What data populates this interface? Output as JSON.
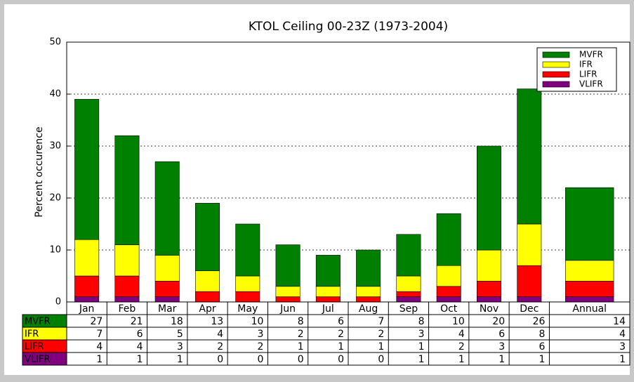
{
  "chart_data": {
    "type": "bar",
    "stacked": true,
    "title": "KTOL Ceiling 00-23Z (1973-2004)",
    "y_label": "Percent occurence",
    "categories": [
      "Jan",
      "Feb",
      "Mar",
      "Apr",
      "May",
      "Jun",
      "Jul",
      "Aug",
      "Sep",
      "Oct",
      "Nov",
      "Dec",
      "Annual"
    ],
    "series": [
      {
        "name": "MVFR",
        "color": "#008000",
        "values": [
          27,
          21,
          18,
          13,
          10,
          8,
          6,
          7,
          8,
          10,
          20,
          26,
          14
        ]
      },
      {
        "name": "IFR",
        "color": "#ffff00",
        "values": [
          7,
          6,
          5,
          4,
          3,
          2,
          2,
          2,
          3,
          4,
          6,
          8,
          4
        ]
      },
      {
        "name": "LIFR",
        "color": "#ff0000",
        "values": [
          4,
          4,
          3,
          2,
          2,
          1,
          1,
          1,
          1,
          2,
          3,
          6,
          3
        ]
      },
      {
        "name": "VLIFR",
        "color": "#800080",
        "values": [
          1,
          1,
          1,
          0,
          0,
          0,
          0,
          0,
          1,
          1,
          1,
          1,
          1
        ]
      }
    ],
    "ylim": [
      0,
      50
    ],
    "yticks": [
      0,
      10,
      20,
      30,
      40,
      50
    ],
    "grid": true,
    "legend": "upper right"
  }
}
